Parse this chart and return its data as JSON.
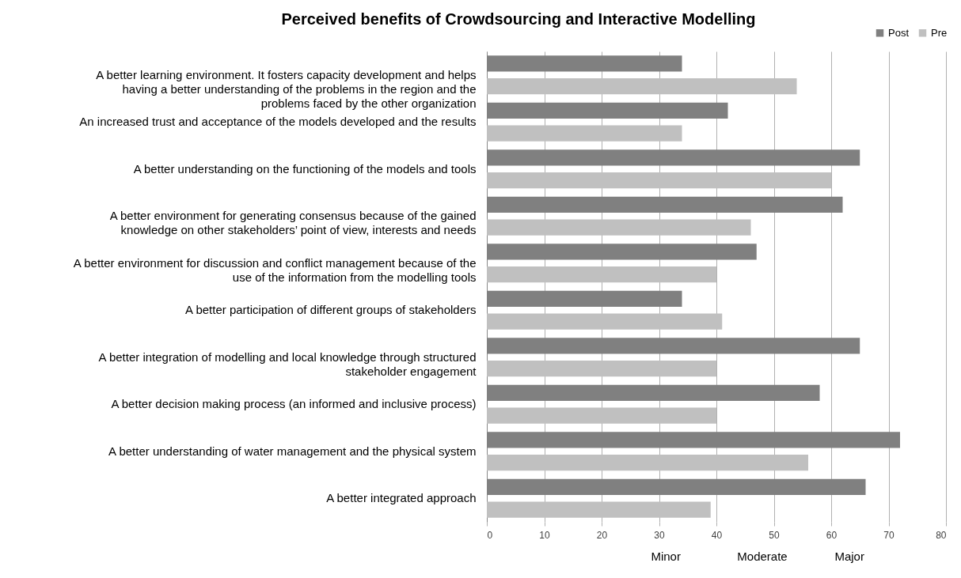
{
  "chart_data": {
    "type": "bar",
    "orientation": "horizontal",
    "title": "Perceived benefits of  Crowdsourcing and Interactive Modelling",
    "categories": [
      "A better learning environment. It fosters capacity development and helps having a better understanding of the problems in the region and the problems faced by the other organization",
      "An increased trust and acceptance of the models developed and the results",
      "A better understanding on the functioning of the models and tools",
      "A better environment for generating consensus because of the gained knowledge on other stakeholders’ point of view, interests and needs",
      "A better environment for discussion and conflict management because of the use of the information from the modelling tools",
      "A better participation of different groups of stakeholders",
      "A better integration of modelling and local knowledge through structured stakeholder engagement",
      "A better decision making process (an informed and inclusive process)",
      "A better understanding of water management and the physical system",
      "A better integrated approach"
    ],
    "series": [
      {
        "name": "Post",
        "color": "#808080",
        "values": [
          34,
          42,
          65,
          62,
          47,
          34,
          65,
          58,
          72,
          66
        ]
      },
      {
        "name": "Pre",
        "color": "#c0c0c0",
        "values": [
          54,
          34,
          60,
          46,
          40,
          41,
          40,
          40,
          56,
          39
        ]
      }
    ],
    "xlim": [
      0,
      80
    ],
    "xticks": [
      0,
      10,
      20,
      30,
      40,
      50,
      60,
      70,
      80
    ],
    "grid": "x",
    "legend": "top right",
    "annotations": [
      "Minor",
      "Moderate",
      "Major"
    ]
  }
}
